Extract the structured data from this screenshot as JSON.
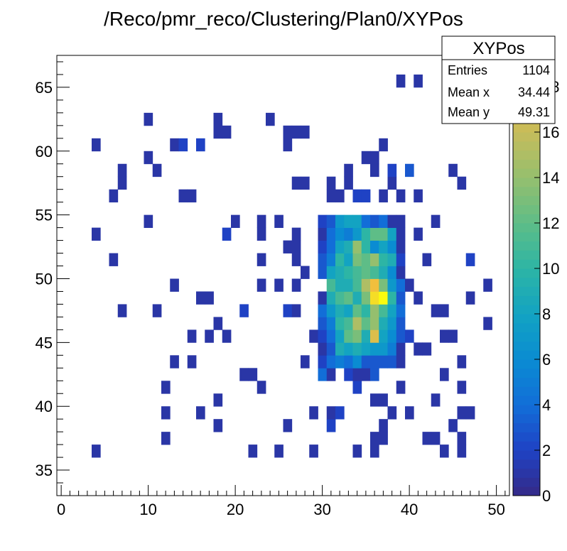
{
  "chart_data": {
    "type": "heatmap",
    "title": "/Reco/pmr_reco/Clustering/Plan0/XYPos",
    "xlabel": "",
    "ylabel": "",
    "xlim": [
      -0.5,
      51.5
    ],
    "ylim": [
      33,
      67.5
    ],
    "x_ticks": [
      0,
      10,
      20,
      30,
      40,
      50
    ],
    "y_ticks": [
      35,
      40,
      45,
      50,
      55,
      60,
      65
    ],
    "z_range": [
      0,
      20
    ],
    "z_ticks": [
      0,
      2,
      4,
      6,
      8,
      10,
      12,
      14,
      16,
      18
    ],
    "z_tick_labels": [
      "0",
      "2",
      "4",
      "6",
      "8",
      "10",
      "12",
      "14",
      "16",
      "18"
    ],
    "colormap": "kBird",
    "grid": false,
    "cells": [
      [
        4,
        36,
        1
      ],
      [
        22,
        36,
        1
      ],
      [
        25,
        36,
        1
      ],
      [
        29,
        36,
        1
      ],
      [
        34,
        36,
        1
      ],
      [
        36,
        36,
        1
      ],
      [
        44,
        36,
        1
      ],
      [
        46,
        36,
        1
      ],
      [
        12,
        37,
        1
      ],
      [
        36,
        37,
        1
      ],
      [
        37,
        37,
        1
      ],
      [
        42,
        37,
        1
      ],
      [
        43,
        37,
        1
      ],
      [
        46,
        37,
        1
      ],
      [
        18,
        38,
        1
      ],
      [
        26,
        38,
        1
      ],
      [
        31,
        38,
        2
      ],
      [
        37,
        38,
        1
      ],
      [
        45,
        38,
        1
      ],
      [
        12,
        39,
        1
      ],
      [
        16,
        39,
        1
      ],
      [
        29,
        39,
        1
      ],
      [
        31,
        39,
        1
      ],
      [
        32,
        39,
        2
      ],
      [
        38,
        39,
        1
      ],
      [
        40,
        39,
        1
      ],
      [
        46,
        39,
        1
      ],
      [
        47,
        39,
        1
      ],
      [
        18,
        40,
        1
      ],
      [
        36,
        40,
        1
      ],
      [
        37,
        40,
        1
      ],
      [
        43,
        40,
        1
      ],
      [
        12,
        41,
        1
      ],
      [
        23,
        41,
        1
      ],
      [
        34,
        41,
        2
      ],
      [
        39,
        41,
        1
      ],
      [
        46,
        41,
        1
      ],
      [
        21,
        42,
        1
      ],
      [
        22,
        42,
        1
      ],
      [
        30,
        42,
        4
      ],
      [
        31,
        42,
        1
      ],
      [
        33,
        42,
        2
      ],
      [
        34,
        42,
        1
      ],
      [
        35,
        42,
        1
      ],
      [
        36,
        42,
        3
      ],
      [
        44,
        42,
        1
      ],
      [
        13,
        43,
        1
      ],
      [
        15,
        43,
        1
      ],
      [
        28,
        43,
        1
      ],
      [
        30,
        43,
        2
      ],
      [
        31,
        43,
        4
      ],
      [
        32,
        43,
        5
      ],
      [
        33,
        43,
        4
      ],
      [
        34,
        43,
        6
      ],
      [
        35,
        43,
        3
      ],
      [
        36,
        43,
        3
      ],
      [
        37,
        43,
        3
      ],
      [
        38,
        43,
        3
      ],
      [
        39,
        43,
        1
      ],
      [
        46,
        43,
        1
      ],
      [
        30,
        44,
        1
      ],
      [
        31,
        44,
        3
      ],
      [
        32,
        44,
        9
      ],
      [
        33,
        44,
        8
      ],
      [
        34,
        44,
        9
      ],
      [
        35,
        44,
        8
      ],
      [
        36,
        44,
        7
      ],
      [
        37,
        44,
        7
      ],
      [
        38,
        44,
        5
      ],
      [
        39,
        44,
        1
      ],
      [
        41,
        44,
        1
      ],
      [
        42,
        44,
        1
      ],
      [
        15,
        45,
        1
      ],
      [
        17,
        45,
        1
      ],
      [
        19,
        45,
        1
      ],
      [
        29,
        45,
        1
      ],
      [
        30,
        45,
        2
      ],
      [
        31,
        45,
        4
      ],
      [
        32,
        45,
        8
      ],
      [
        33,
        45,
        12
      ],
      [
        34,
        45,
        13
      ],
      [
        35,
        45,
        9
      ],
      [
        36,
        45,
        17
      ],
      [
        37,
        45,
        8
      ],
      [
        38,
        45,
        6
      ],
      [
        39,
        45,
        3
      ],
      [
        40,
        45,
        2
      ],
      [
        44,
        45,
        1
      ],
      [
        45,
        45,
        1
      ],
      [
        18,
        46,
        1
      ],
      [
        30,
        46,
        3
      ],
      [
        31,
        46,
        5
      ],
      [
        32,
        46,
        10
      ],
      [
        33,
        46,
        11
      ],
      [
        34,
        46,
        15
      ],
      [
        35,
        46,
        12
      ],
      [
        36,
        46,
        14
      ],
      [
        37,
        46,
        9
      ],
      [
        38,
        46,
        7
      ],
      [
        39,
        46,
        3
      ],
      [
        49,
        46,
        1
      ],
      [
        7,
        47,
        1
      ],
      [
        11,
        47,
        1
      ],
      [
        21,
        47,
        2
      ],
      [
        26,
        47,
        2
      ],
      [
        27,
        47,
        1
      ],
      [
        30,
        47,
        4
      ],
      [
        31,
        47,
        7
      ],
      [
        32,
        47,
        9
      ],
      [
        33,
        47,
        8
      ],
      [
        34,
        47,
        12
      ],
      [
        35,
        47,
        10
      ],
      [
        36,
        47,
        14
      ],
      [
        37,
        47,
        11
      ],
      [
        38,
        47,
        8
      ],
      [
        39,
        47,
        4
      ],
      [
        43,
        47,
        1
      ],
      [
        44,
        47,
        1
      ],
      [
        16,
        48,
        1
      ],
      [
        17,
        48,
        1
      ],
      [
        30,
        48,
        1
      ],
      [
        31,
        48,
        9
      ],
      [
        32,
        48,
        11
      ],
      [
        33,
        48,
        12
      ],
      [
        34,
        48,
        9
      ],
      [
        35,
        48,
        13
      ],
      [
        36,
        48,
        19
      ],
      [
        37,
        48,
        20
      ],
      [
        38,
        48,
        10
      ],
      [
        39,
        48,
        3
      ],
      [
        41,
        48,
        1
      ],
      [
        47,
        48,
        1
      ],
      [
        13,
        49,
        1
      ],
      [
        23,
        49,
        1
      ],
      [
        25,
        49,
        1
      ],
      [
        27,
        49,
        1
      ],
      [
        31,
        49,
        11
      ],
      [
        32,
        49,
        9
      ],
      [
        33,
        49,
        9
      ],
      [
        34,
        49,
        11
      ],
      [
        35,
        49,
        15
      ],
      [
        36,
        49,
        18
      ],
      [
        37,
        49,
        13
      ],
      [
        38,
        49,
        7
      ],
      [
        39,
        49,
        4
      ],
      [
        40,
        49,
        1
      ],
      [
        49,
        49,
        1
      ],
      [
        28,
        50,
        1
      ],
      [
        30,
        50,
        3
      ],
      [
        31,
        50,
        8
      ],
      [
        32,
        50,
        9
      ],
      [
        33,
        50,
        10
      ],
      [
        34,
        50,
        11
      ],
      [
        35,
        50,
        12
      ],
      [
        36,
        50,
        11
      ],
      [
        37,
        50,
        9
      ],
      [
        38,
        50,
        6
      ],
      [
        39,
        50,
        1
      ],
      [
        6,
        51,
        1
      ],
      [
        23,
        51,
        1
      ],
      [
        27,
        51,
        1
      ],
      [
        30,
        51,
        3
      ],
      [
        31,
        51,
        5
      ],
      [
        32,
        51,
        10
      ],
      [
        33,
        51,
        8
      ],
      [
        34,
        51,
        13
      ],
      [
        35,
        51,
        12
      ],
      [
        36,
        51,
        14
      ],
      [
        37,
        51,
        10
      ],
      [
        38,
        51,
        9
      ],
      [
        39,
        51,
        2
      ],
      [
        42,
        51,
        1
      ],
      [
        47,
        51,
        2
      ],
      [
        26,
        52,
        1
      ],
      [
        27,
        52,
        1
      ],
      [
        30,
        52,
        2
      ],
      [
        31,
        52,
        4
      ],
      [
        32,
        52,
        8
      ],
      [
        33,
        52,
        9
      ],
      [
        34,
        52,
        14
      ],
      [
        35,
        52,
        10
      ],
      [
        36,
        52,
        6
      ],
      [
        37,
        52,
        8
      ],
      [
        38,
        52,
        6
      ],
      [
        39,
        52,
        1
      ],
      [
        4,
        53,
        1
      ],
      [
        19,
        53,
        2
      ],
      [
        23,
        53,
        1
      ],
      [
        27,
        53,
        1
      ],
      [
        30,
        53,
        1
      ],
      [
        31,
        53,
        4
      ],
      [
        32,
        53,
        6
      ],
      [
        33,
        53,
        5
      ],
      [
        34,
        53,
        7
      ],
      [
        35,
        53,
        10
      ],
      [
        36,
        53,
        12
      ],
      [
        37,
        53,
        12
      ],
      [
        38,
        53,
        8
      ],
      [
        39,
        53,
        1
      ],
      [
        41,
        53,
        1
      ],
      [
        10,
        54,
        1
      ],
      [
        20,
        54,
        1
      ],
      [
        23,
        54,
        1
      ],
      [
        25,
        54,
        1
      ],
      [
        30,
        54,
        2
      ],
      [
        31,
        54,
        3
      ],
      [
        32,
        54,
        7
      ],
      [
        33,
        54,
        8
      ],
      [
        34,
        54,
        8
      ],
      [
        35,
        54,
        4
      ],
      [
        36,
        54,
        3
      ],
      [
        37,
        54,
        4
      ],
      [
        38,
        54,
        1
      ],
      [
        39,
        54,
        1
      ],
      [
        43,
        54,
        1
      ],
      [
        6,
        56,
        1
      ],
      [
        14,
        56,
        1
      ],
      [
        15,
        56,
        1
      ],
      [
        31,
        56,
        1
      ],
      [
        32,
        56,
        1
      ],
      [
        34,
        56,
        2
      ],
      [
        35,
        56,
        2
      ],
      [
        37,
        56,
        1
      ],
      [
        39,
        56,
        1
      ],
      [
        41,
        56,
        1
      ],
      [
        7,
        57,
        1
      ],
      [
        27,
        57,
        1
      ],
      [
        28,
        57,
        1
      ],
      [
        31,
        57,
        1
      ],
      [
        33,
        57,
        1
      ],
      [
        38,
        57,
        1
      ],
      [
        46,
        57,
        1
      ],
      [
        7,
        58,
        1
      ],
      [
        11,
        58,
        1
      ],
      [
        33,
        58,
        1
      ],
      [
        36,
        58,
        1
      ],
      [
        38,
        58,
        2
      ],
      [
        40,
        58,
        3
      ],
      [
        45,
        58,
        1
      ],
      [
        10,
        59,
        1
      ],
      [
        35,
        59,
        1
      ],
      [
        36,
        59,
        1
      ],
      [
        4,
        60,
        1
      ],
      [
        13,
        60,
        1
      ],
      [
        14,
        60,
        2
      ],
      [
        16,
        60,
        2
      ],
      [
        26,
        60,
        1
      ],
      [
        37,
        60,
        1
      ],
      [
        18,
        61,
        1
      ],
      [
        19,
        61,
        1
      ],
      [
        26,
        61,
        1
      ],
      [
        27,
        61,
        1
      ],
      [
        28,
        61,
        1
      ],
      [
        10,
        62,
        1
      ],
      [
        18,
        62,
        1
      ],
      [
        24,
        62,
        1
      ],
      [
        39,
        65,
        1
      ],
      [
        41,
        65,
        1
      ]
    ]
  },
  "stats": {
    "title": "XYPos",
    "rows": [
      {
        "label": "Entries",
        "value": "1104"
      },
      {
        "label": "Mean x",
        "value": "34.44"
      },
      {
        "label": "Mean y",
        "value": "49.31"
      }
    ]
  }
}
